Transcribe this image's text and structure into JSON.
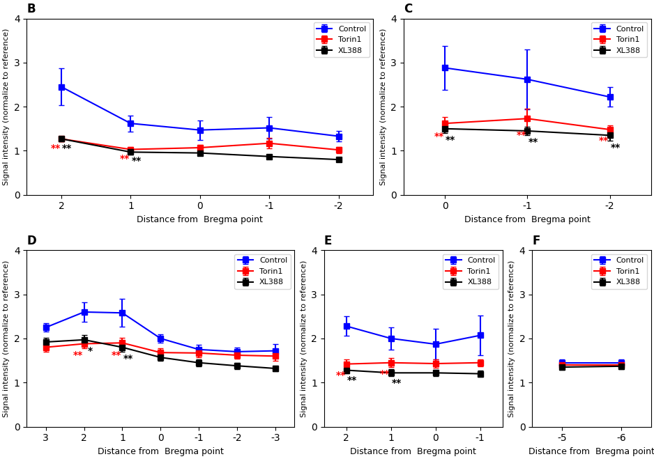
{
  "chart_data": [
    {
      "type": "line",
      "title": "B",
      "categories": [
        "2",
        "1",
        "0",
        "-1",
        "-2"
      ],
      "xlabel": "Distance from  Bregma point",
      "ylabel": "Signal intensity (normalize to reference)",
      "ylim": [
        0,
        4
      ],
      "yticks": [
        0,
        1,
        2,
        3,
        4
      ],
      "legend": "upper right",
      "marker": "square",
      "series": [
        {
          "name": "Control",
          "color": "#0000FF",
          "values": [
            2.45,
            1.62,
            1.47,
            1.52,
            1.33
          ],
          "errors": [
            0.42,
            0.18,
            0.22,
            0.25,
            0.12
          ]
        },
        {
          "name": "Torin1",
          "color": "#FF0000",
          "values": [
            1.27,
            1.03,
            1.07,
            1.17,
            1.02
          ],
          "errors": [
            0.06,
            0.06,
            0.07,
            0.12,
            0.07
          ]
        },
        {
          "name": "XL388",
          "color": "#000000",
          "values": [
            1.27,
            0.97,
            0.95,
            0.87,
            0.8
          ],
          "errors": [
            0.06,
            0.05,
            0.05,
            0.05,
            0.04
          ]
        }
      ],
      "annotations": [
        {
          "text": "**",
          "category": "2",
          "series": "Torin1",
          "color": "#FF0000"
        },
        {
          "text": "**",
          "category": "1",
          "series": "Torin1",
          "color": "#FF0000"
        },
        {
          "text": "**",
          "category": "2",
          "series": "XL388",
          "color": "#000000"
        },
        {
          "text": "**",
          "category": "1",
          "series": "XL388",
          "color": "#000000"
        }
      ]
    },
    {
      "type": "line",
      "title": "C",
      "categories": [
        "0",
        "-1",
        "-2"
      ],
      "xlabel": "Distance from  Bregma point",
      "ylabel": "Signal intensity (normalize to reference)",
      "ylim": [
        0,
        4
      ],
      "yticks": [
        0,
        1,
        2,
        3,
        4
      ],
      "legend": "upper right",
      "marker": "square",
      "series": [
        {
          "name": "Control",
          "color": "#0000FF",
          "values": [
            2.88,
            2.62,
            2.22
          ],
          "errors": [
            0.5,
            0.68,
            0.22
          ]
        },
        {
          "name": "Torin1",
          "color": "#FF0000",
          "values": [
            1.62,
            1.73,
            1.48
          ],
          "errors": [
            0.14,
            0.22,
            0.1
          ]
        },
        {
          "name": "XL388",
          "color": "#000000",
          "values": [
            1.5,
            1.45,
            1.35
          ],
          "errors": [
            0.1,
            0.1,
            0.12
          ]
        }
      ],
      "annotations": [
        {
          "text": "**",
          "category": "0",
          "series": "Torin1",
          "color": "#FF0000"
        },
        {
          "text": "**",
          "category": "-1",
          "series": "Torin1",
          "color": "#FF0000"
        },
        {
          "text": "**",
          "category": "-2",
          "series": "Torin1",
          "color": "#FF0000"
        },
        {
          "text": "**",
          "category": "0",
          "series": "XL388",
          "color": "#000000"
        },
        {
          "text": "**",
          "category": "-1",
          "series": "XL388",
          "color": "#000000"
        },
        {
          "text": "**",
          "category": "-2",
          "series": "XL388",
          "color": "#000000"
        }
      ]
    },
    {
      "type": "line",
      "title": "D",
      "categories": [
        "3",
        "2",
        "1",
        "0",
        "-1",
        "-2",
        "-3"
      ],
      "xlabel": "Distance from  Bregma point",
      "ylabel": "Signal intensity (normalize to reference)",
      "ylim": [
        0,
        4
      ],
      "yticks": [
        0,
        1,
        2,
        3,
        4
      ],
      "legend": "upper right",
      "marker": "square",
      "series": [
        {
          "name": "Control",
          "color": "#0000FF",
          "values": [
            2.25,
            2.6,
            2.58,
            2.0,
            1.75,
            1.7,
            1.72
          ],
          "errors": [
            0.1,
            0.22,
            0.32,
            0.1,
            0.1,
            0.1,
            0.15
          ]
        },
        {
          "name": "Torin1",
          "color": "#FF0000",
          "values": [
            1.8,
            1.88,
            1.9,
            1.68,
            1.67,
            1.62,
            1.6
          ],
          "errors": [
            0.1,
            0.1,
            0.12,
            0.1,
            0.1,
            0.08,
            0.1
          ]
        },
        {
          "name": "XL388",
          "color": "#000000",
          "values": [
            1.92,
            1.97,
            1.8,
            1.57,
            1.45,
            1.38,
            1.32
          ],
          "errors": [
            0.1,
            0.1,
            0.1,
            0.08,
            0.08,
            0.07,
            0.07
          ]
        }
      ],
      "annotations": [
        {
          "text": "*",
          "category": "2",
          "series": "XL388",
          "color": "#000000"
        },
        {
          "text": "**",
          "category": "1",
          "series": "XL388",
          "color": "#000000"
        },
        {
          "text": "**",
          "category": "2",
          "series": "Torin1",
          "color": "#FF0000"
        },
        {
          "text": "**",
          "category": "1",
          "series": "Torin1",
          "color": "#FF0000"
        }
      ]
    },
    {
      "type": "line",
      "title": "E",
      "categories": [
        "2",
        "1",
        "0",
        "-1"
      ],
      "xlabel": "Distance from  Bregma point",
      "ylabel": "Signal intensity (normalize to reference)",
      "ylim": [
        0,
        4
      ],
      "yticks": [
        0,
        1,
        2,
        3,
        4
      ],
      "legend": "upper right",
      "marker": "square",
      "series": [
        {
          "name": "Control",
          "color": "#0000FF",
          "values": [
            2.28,
            2.0,
            1.87,
            2.07
          ],
          "errors": [
            0.22,
            0.25,
            0.35,
            0.45
          ]
        },
        {
          "name": "Torin1",
          "color": "#FF0000",
          "values": [
            1.42,
            1.45,
            1.43,
            1.45
          ],
          "errors": [
            0.1,
            0.1,
            0.1,
            0.08
          ]
        },
        {
          "name": "XL388",
          "color": "#000000",
          "values": [
            1.28,
            1.22,
            1.22,
            1.2
          ],
          "errors": [
            0.07,
            0.08,
            0.07,
            0.07
          ]
        }
      ],
      "annotations": [
        {
          "text": "**",
          "category": "2",
          "series": "Torin1",
          "color": "#FF0000"
        },
        {
          "text": "**",
          "category": "1",
          "series": "Torin1",
          "color": "#FF0000"
        },
        {
          "text": "**",
          "category": "2",
          "series": "XL388",
          "color": "#000000"
        },
        {
          "text": "**",
          "category": "1",
          "series": "XL388",
          "color": "#000000"
        }
      ]
    },
    {
      "type": "line",
      "title": "F",
      "categories": [
        "-5",
        "-6"
      ],
      "xlabel": "Distance from  Bregma point",
      "ylabel": "Signal intensity (normalize to reference)",
      "ylim": [
        0,
        4
      ],
      "yticks": [
        0,
        1,
        2,
        3,
        4
      ],
      "legend": "upper right",
      "marker": "square",
      "series": [
        {
          "name": "Control",
          "color": "#0000FF",
          "values": [
            1.45,
            1.45
          ],
          "errors": [
            0.07,
            0.07
          ]
        },
        {
          "name": "Torin1",
          "color": "#FF0000",
          "values": [
            1.4,
            1.4
          ],
          "errors": [
            0.07,
            0.05
          ]
        },
        {
          "name": "XL388",
          "color": "#000000",
          "values": [
            1.35,
            1.37
          ],
          "errors": [
            0.06,
            0.07
          ]
        }
      ],
      "annotations": []
    }
  ]
}
